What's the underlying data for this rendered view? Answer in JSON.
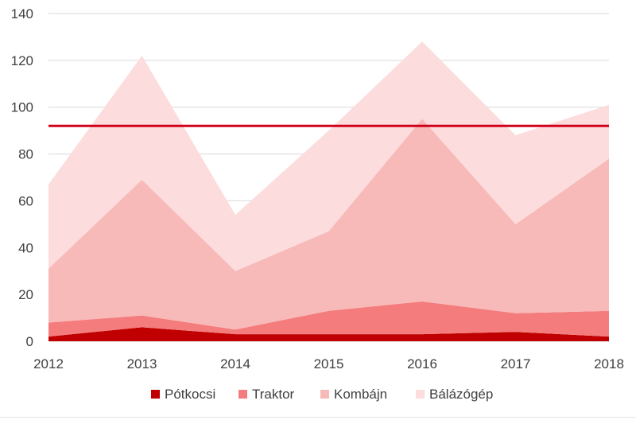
{
  "chart_data": {
    "type": "area",
    "stacked": true,
    "x": [
      "2012",
      "2013",
      "2014",
      "2015",
      "2016",
      "2017",
      "2018"
    ],
    "ylim": [
      0,
      140
    ],
    "yticks": [
      0,
      20,
      40,
      60,
      80,
      100,
      120,
      140
    ],
    "grid": true,
    "legend_position": "bottom",
    "series": [
      {
        "name": "Pótkocsi",
        "color": "#c00000",
        "values": [
          2,
          6,
          3,
          3,
          3,
          4,
          2
        ]
      },
      {
        "name": "Traktor",
        "color": "#f47c7c",
        "values": [
          6,
          5,
          2,
          10,
          14,
          8,
          11
        ]
      },
      {
        "name": "Kombájn",
        "color": "#f8b9b9",
        "values": [
          23,
          58,
          25,
          34,
          78,
          38,
          65
        ]
      },
      {
        "name": "Bálázógép",
        "color": "#fcdcdd",
        "values": [
          36,
          53,
          24,
          43,
          33,
          38,
          23
        ]
      }
    ],
    "reference_line": {
      "value": 92,
      "color": "#d0021b"
    }
  }
}
